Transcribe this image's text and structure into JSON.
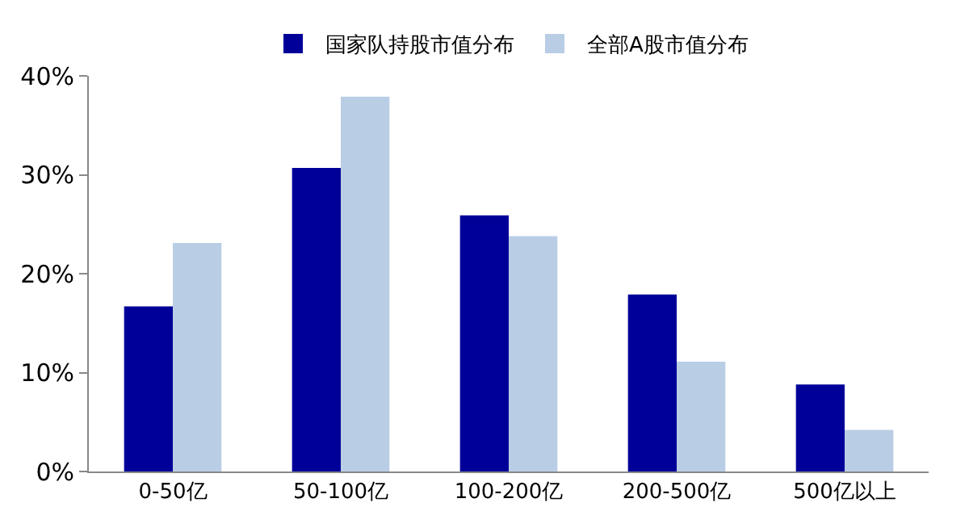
{
  "chart_data": {
    "type": "bar",
    "categories": [
      "0-50亿",
      "50-100亿",
      "100-200亿",
      "200-500亿",
      "500亿以上"
    ],
    "series": [
      {
        "name": "国家队持股市值分布",
        "color": "#000099",
        "values": [
          16.7,
          30.7,
          25.9,
          17.9,
          8.8
        ]
      },
      {
        "name": "全部A股市值分布",
        "color": "#b9cde5",
        "values": [
          23.1,
          37.9,
          23.8,
          11.1,
          4.2
        ]
      }
    ],
    "ylim": [
      0,
      40
    ],
    "yticks": [
      {
        "value": 0,
        "label": "0%"
      },
      {
        "value": 10,
        "label": "10%"
      },
      {
        "value": 20,
        "label": "20%"
      },
      {
        "value": 30,
        "label": "30%"
      },
      {
        "value": 40,
        "label": "40%"
      }
    ],
    "legend": "top"
  }
}
